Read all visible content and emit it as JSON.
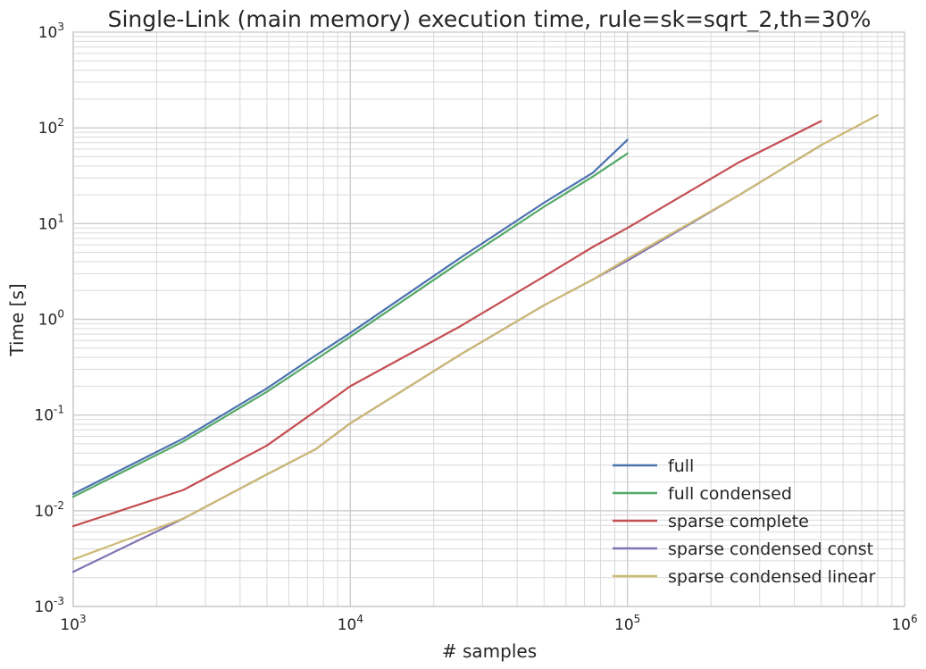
{
  "chart_data": {
    "type": "line",
    "title": "Single-Link (main memory) execution time, rule=sk=sqrt_2,th=30%",
    "xlabel": "# samples",
    "ylabel": "Time [s]",
    "xscale": "log",
    "yscale": "log",
    "xlim": [
      1000,
      1000000
    ],
    "ylim": [
      0.001,
      1000
    ],
    "grid": true,
    "legend_position": "lower-right",
    "x_ticks": [
      {
        "base": "10",
        "exp": "3"
      },
      {
        "base": "10",
        "exp": "4"
      },
      {
        "base": "10",
        "exp": "5"
      },
      {
        "base": "10",
        "exp": "6"
      }
    ],
    "y_ticks": [
      {
        "base": "10",
        "exp": "-3"
      },
      {
        "base": "10",
        "exp": "-2"
      },
      {
        "base": "10",
        "exp": "-1"
      },
      {
        "base": "10",
        "exp": "0"
      },
      {
        "base": "10",
        "exp": "1"
      },
      {
        "base": "10",
        "exp": "2"
      },
      {
        "base": "10",
        "exp": "3"
      }
    ],
    "series": [
      {
        "name": "full",
        "color": "#4c72b0",
        "x": [
          1000,
          2500,
          5000,
          7500,
          10000,
          25000,
          50000,
          75000,
          100000
        ],
        "y": [
          0.015,
          0.057,
          0.19,
          0.42,
          0.72,
          4.4,
          16.5,
          34,
          75
        ]
      },
      {
        "name": "full condensed",
        "color": "#55a868",
        "x": [
          1000,
          2500,
          5000,
          7500,
          10000,
          25000,
          50000,
          75000,
          100000
        ],
        "y": [
          0.014,
          0.053,
          0.175,
          0.38,
          0.66,
          4.0,
          15,
          31,
          54
        ]
      },
      {
        "name": "sparse complete",
        "color": "#c44e52",
        "x": [
          1000,
          2500,
          5000,
          7500,
          10000,
          25000,
          50000,
          75000,
          100000,
          250000,
          500000
        ],
        "y": [
          0.0069,
          0.0165,
          0.048,
          0.11,
          0.2,
          0.85,
          2.8,
          5.7,
          9,
          43,
          118
        ]
      },
      {
        "name": "sparse condensed const",
        "color": "#8172b2",
        "x": [
          1000,
          2500,
          5000,
          7500,
          10000,
          25000,
          50000,
          75000,
          100000,
          250000,
          500000
        ],
        "y": [
          0.0023,
          0.0083,
          0.024,
          0.044,
          0.082,
          0.43,
          1.4,
          2.6,
          4.1,
          19.5,
          66
        ]
      },
      {
        "name": "sparse condensed linear",
        "color": "#ccb974",
        "x": [
          1000,
          2500,
          5000,
          7500,
          10000,
          25000,
          50000,
          75000,
          100000,
          250000,
          500000,
          800000
        ],
        "y": [
          0.0031,
          0.0083,
          0.024,
          0.044,
          0.082,
          0.43,
          1.4,
          2.6,
          4.3,
          19.5,
          66,
          136
        ]
      }
    ]
  }
}
